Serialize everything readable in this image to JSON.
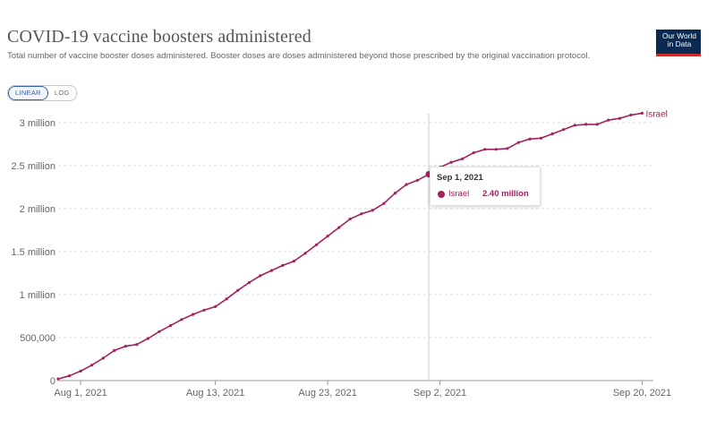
{
  "header": {
    "title": "COVID-19 vaccine boosters administered",
    "subtitle": "Total number of vaccine booster doses administered. Booster doses are doses administered beyond those prescribed by the original vaccination protocol.",
    "logo_line1": "Our World",
    "logo_line2": "in Data"
  },
  "controls": {
    "linear_label": "LINEAR",
    "log_label": "LOG"
  },
  "tooltip": {
    "date": "Sep 1, 2021",
    "series": "Israel",
    "value": "2.40 million"
  },
  "colors": {
    "series": "#a2215e",
    "grid": "#dddddd",
    "axis_text": "#666666",
    "accent": "#3360a9"
  },
  "chart_data": {
    "type": "line",
    "title": "COVID-19 vaccine boosters administered",
    "subtitle": "Total number of vaccine booster doses administered. Booster doses are doses administered beyond those prescribed by the original vaccination protocol.",
    "xlabel": "",
    "ylabel": "",
    "x_range": [
      "2021-07-30",
      "2021-09-21"
    ],
    "ylim": [
      0,
      3000000
    ],
    "y_ticks": [
      {
        "value": 0,
        "label": "0"
      },
      {
        "value": 500000,
        "label": "500,000"
      },
      {
        "value": 1000000,
        "label": "1 million"
      },
      {
        "value": 1500000,
        "label": "1.5 million"
      },
      {
        "value": 2000000,
        "label": "2 million"
      },
      {
        "value": 2500000,
        "label": "2.5 million"
      },
      {
        "value": 3000000,
        "label": "3 million"
      }
    ],
    "x_ticks": [
      {
        "date": "2021-08-01",
        "label": "Aug 1, 2021"
      },
      {
        "date": "2021-08-13",
        "label": "Aug 13, 2021"
      },
      {
        "date": "2021-08-23",
        "label": "Aug 23, 2021"
      },
      {
        "date": "2021-09-02",
        "label": "Sep 2, 2021"
      },
      {
        "date": "2021-09-20",
        "label": "Sep 20, 2021"
      }
    ],
    "grid": true,
    "highlight_date": "2021-09-01",
    "series": [
      {
        "name": "Israel",
        "color": "#a2215e",
        "points": [
          [
            "2021-07-30",
            20000
          ],
          [
            "2021-07-31",
            55000
          ],
          [
            "2021-08-01",
            110000
          ],
          [
            "2021-08-02",
            180000
          ],
          [
            "2021-08-03",
            260000
          ],
          [
            "2021-08-04",
            350000
          ],
          [
            "2021-08-05",
            400000
          ],
          [
            "2021-08-06",
            420000
          ],
          [
            "2021-08-07",
            490000
          ],
          [
            "2021-08-08",
            570000
          ],
          [
            "2021-08-09",
            640000
          ],
          [
            "2021-08-10",
            710000
          ],
          [
            "2021-08-11",
            770000
          ],
          [
            "2021-08-12",
            820000
          ],
          [
            "2021-08-13",
            860000
          ],
          [
            "2021-08-14",
            950000
          ],
          [
            "2021-08-15",
            1050000
          ],
          [
            "2021-08-16",
            1140000
          ],
          [
            "2021-08-17",
            1220000
          ],
          [
            "2021-08-18",
            1280000
          ],
          [
            "2021-08-19",
            1340000
          ],
          [
            "2021-08-20",
            1390000
          ],
          [
            "2021-08-21",
            1480000
          ],
          [
            "2021-08-22",
            1580000
          ],
          [
            "2021-08-23",
            1680000
          ],
          [
            "2021-08-24",
            1780000
          ],
          [
            "2021-08-25",
            1880000
          ],
          [
            "2021-08-26",
            1940000
          ],
          [
            "2021-08-27",
            1980000
          ],
          [
            "2021-08-28",
            2060000
          ],
          [
            "2021-08-29",
            2180000
          ],
          [
            "2021-08-30",
            2280000
          ],
          [
            "2021-08-31",
            2330000
          ],
          [
            "2021-09-01",
            2400000
          ],
          [
            "2021-09-02",
            2480000
          ],
          [
            "2021-09-03",
            2540000
          ],
          [
            "2021-09-04",
            2580000
          ],
          [
            "2021-09-05",
            2650000
          ],
          [
            "2021-09-06",
            2690000
          ],
          [
            "2021-09-07",
            2690000
          ],
          [
            "2021-09-08",
            2700000
          ],
          [
            "2021-09-09",
            2770000
          ],
          [
            "2021-09-10",
            2810000
          ],
          [
            "2021-09-11",
            2820000
          ],
          [
            "2021-09-12",
            2870000
          ],
          [
            "2021-09-13",
            2920000
          ],
          [
            "2021-09-14",
            2970000
          ],
          [
            "2021-09-15",
            2980000
          ],
          [
            "2021-09-16",
            2980000
          ],
          [
            "2021-09-17",
            3030000
          ],
          [
            "2021-09-18",
            3050000
          ],
          [
            "2021-09-19",
            3090000
          ],
          [
            "2021-09-20",
            3110000
          ]
        ]
      }
    ]
  }
}
